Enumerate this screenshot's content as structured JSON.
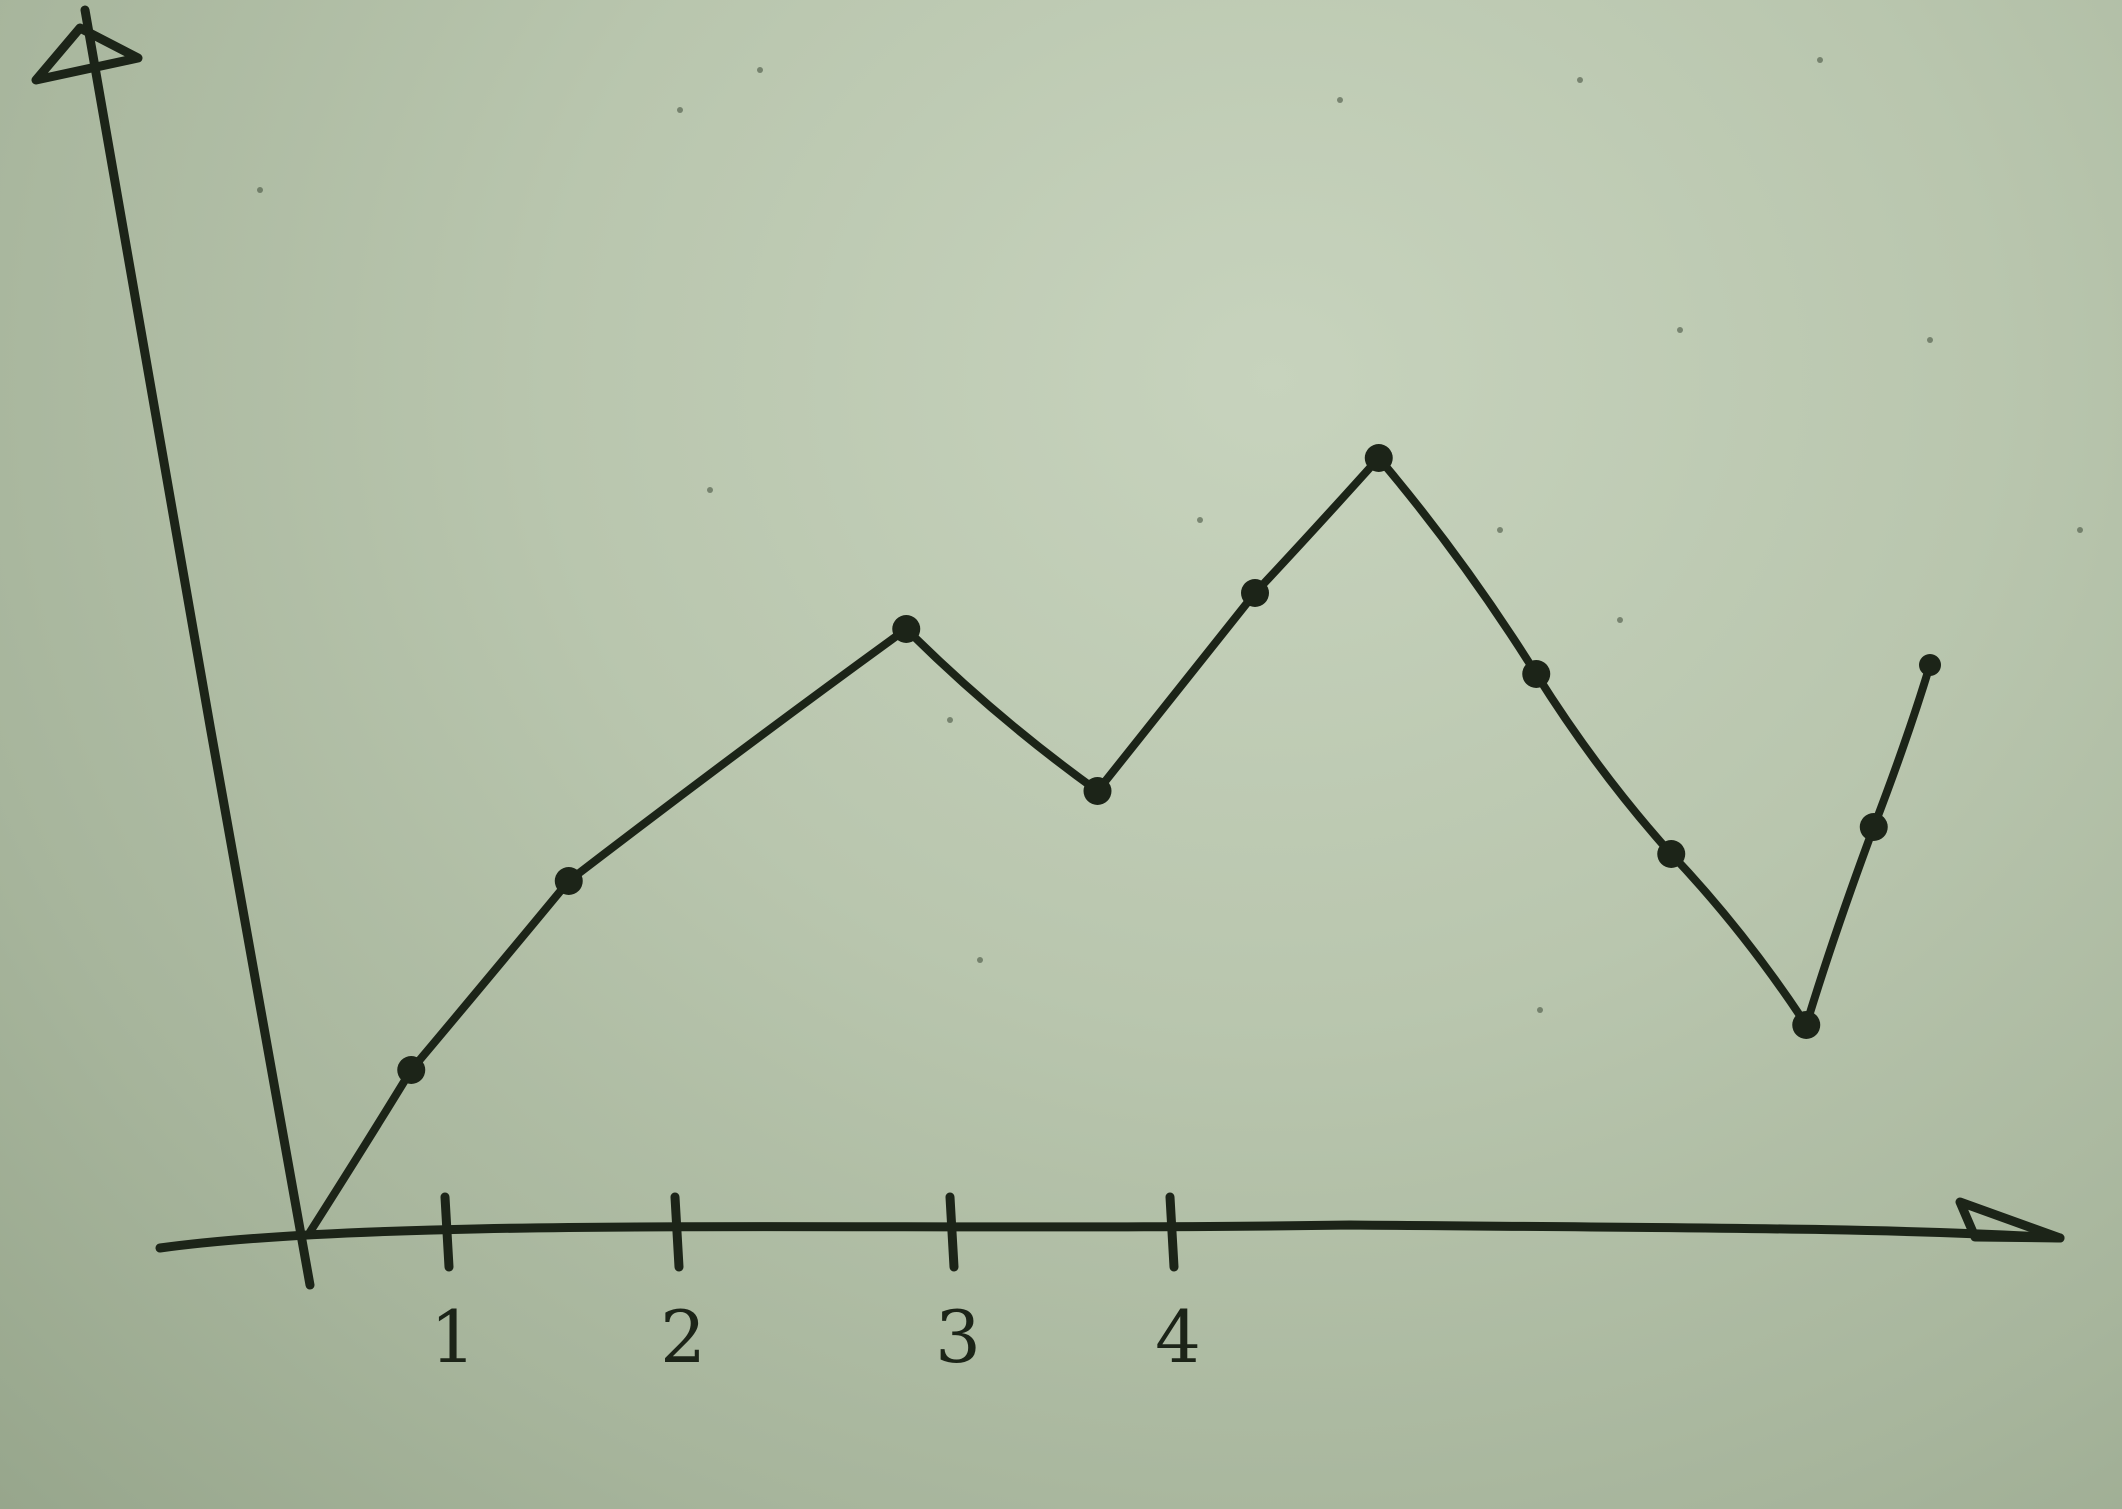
{
  "chart_data": {
    "type": "line",
    "title": "",
    "xlabel": "",
    "ylabel": "",
    "x_ticks": [
      "1",
      "2",
      "3",
      "4"
    ],
    "xlim": [
      0,
      7
    ],
    "ylim": [
      0,
      10
    ],
    "grid": false,
    "legend": "none",
    "series": [
      {
        "x": [
          0,
          0.45,
          1.15,
          2.65,
          3.5,
          4.2,
          4.75,
          5.45,
          6.05,
          6.65,
          6.95,
          7.2
        ],
        "y": [
          0,
          1.8,
          3.9,
          6.7,
          4.9,
          7.1,
          8.6,
          6.2,
          4.2,
          2.3,
          4.5,
          6.3
        ]
      }
    ],
    "colors": {
      "ink": "#1c2418",
      "paper": "#b9c6ae"
    }
  }
}
